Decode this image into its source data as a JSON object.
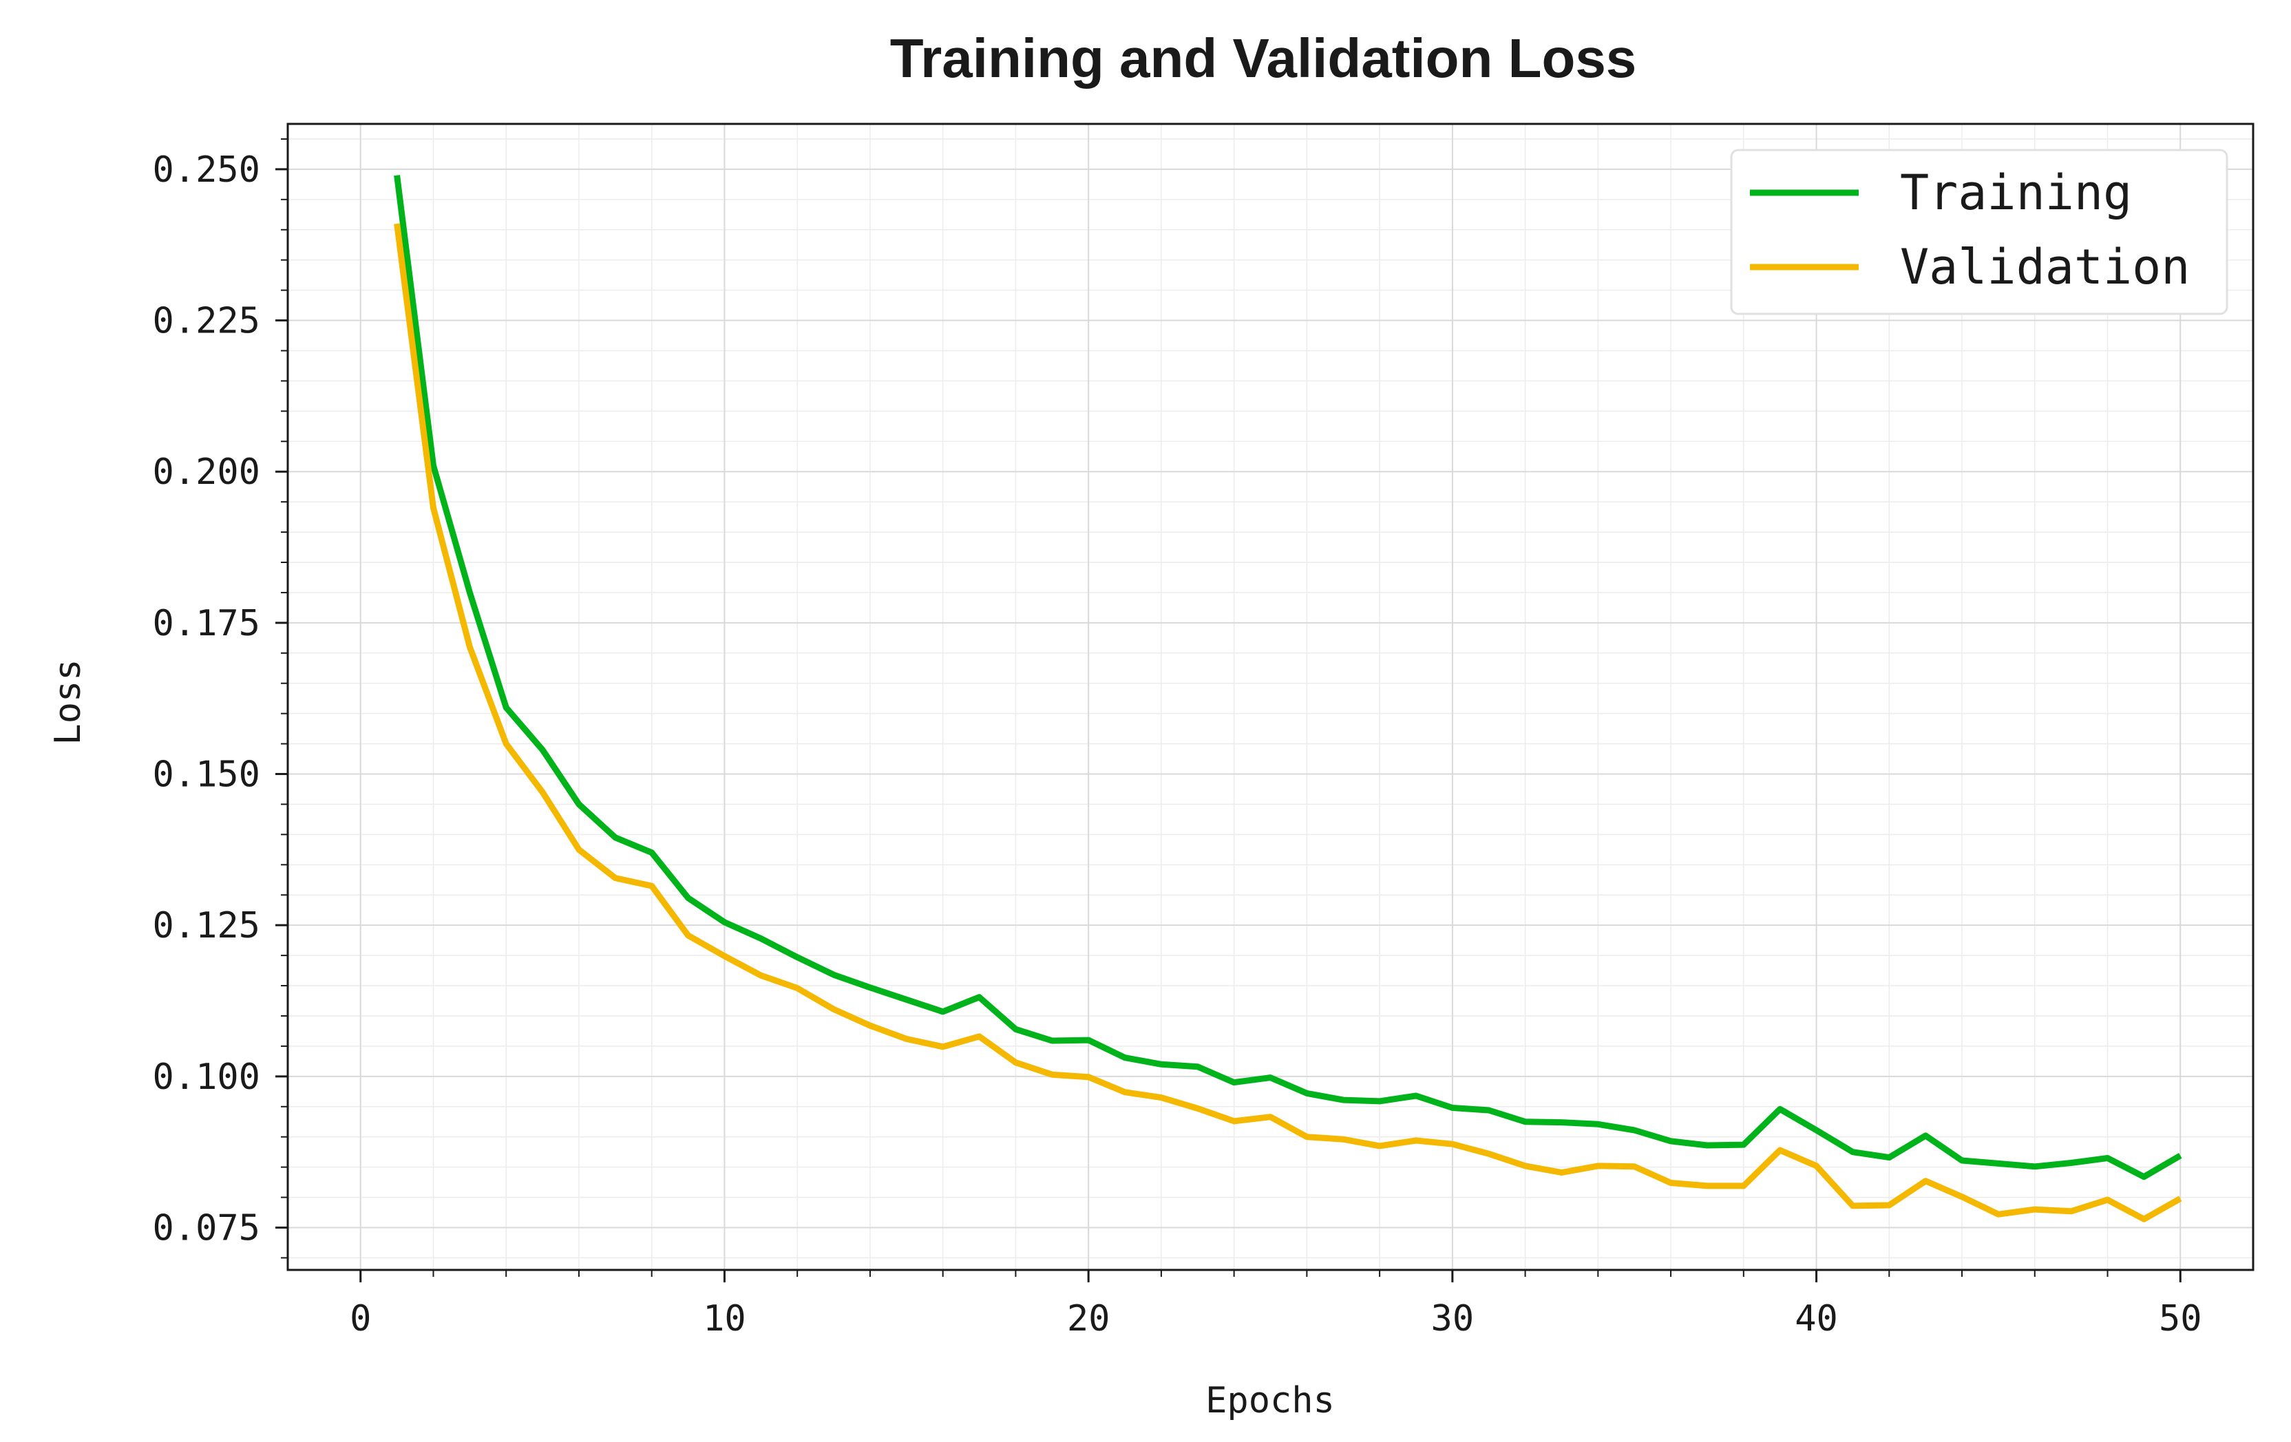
{
  "chart_data": {
    "type": "line",
    "title": "Training and Validation Loss",
    "xlabel": "Epochs",
    "ylabel": "Loss",
    "xlim": [
      -2,
      52
    ],
    "ylim": [
      0.068,
      0.2575
    ],
    "xticks": [
      0,
      10,
      20,
      30,
      40,
      50
    ],
    "xtick_labels": [
      "0",
      "10",
      "20",
      "30",
      "40",
      "50"
    ],
    "yticks": [
      0.075,
      0.1,
      0.125,
      0.15,
      0.175,
      0.2,
      0.225,
      0.25
    ],
    "ytick_labels": [
      "0.075",
      "0.100",
      "0.125",
      "0.150",
      "0.175",
      "0.200",
      "0.225",
      "0.250"
    ],
    "grid": true,
    "legend_position": "top-right",
    "x": [
      1,
      2,
      3,
      4,
      5,
      6,
      7,
      8,
      9,
      10,
      11,
      12,
      13,
      14,
      15,
      16,
      17,
      18,
      19,
      20,
      21,
      22,
      23,
      24,
      25,
      26,
      27,
      28,
      29,
      30,
      31,
      32,
      33,
      34,
      35,
      36,
      37,
      38,
      39,
      40,
      41,
      42,
      43,
      44,
      45,
      46,
      47,
      48,
      49,
      50
    ],
    "series": [
      {
        "name": "Training",
        "color": "#00b31a",
        "values": [
          0.249,
          0.201,
          0.18,
          0.161,
          0.154,
          0.145,
          0.1395,
          0.137,
          0.1295,
          0.1255,
          0.1228,
          0.1197,
          0.1168,
          0.1147,
          0.1127,
          0.1107,
          0.1131,
          0.1078,
          0.1059,
          0.106,
          0.1031,
          0.102,
          0.1016,
          0.099,
          0.0998,
          0.0972,
          0.0961,
          0.0959,
          0.0968,
          0.0948,
          0.0944,
          0.0925,
          0.0924,
          0.0921,
          0.0911,
          0.0893,
          0.0886,
          0.0887,
          0.0946,
          0.0911,
          0.0875,
          0.0866,
          0.0902,
          0.0861,
          0.0856,
          0.0851,
          0.0857,
          0.0865,
          0.0834,
          0.0869
        ]
      },
      {
        "name": "Validation",
        "color": "#f5b800",
        "values": [
          0.241,
          0.194,
          0.171,
          0.155,
          0.147,
          0.1375,
          0.1328,
          0.1315,
          0.1233,
          0.1199,
          0.1167,
          0.1146,
          0.1111,
          0.1084,
          0.1062,
          0.1049,
          0.1066,
          0.1023,
          0.1003,
          0.0999,
          0.0974,
          0.0965,
          0.0947,
          0.0926,
          0.0933,
          0.09,
          0.0896,
          0.0885,
          0.0894,
          0.0888,
          0.0872,
          0.0852,
          0.0841,
          0.0852,
          0.0851,
          0.0824,
          0.0819,
          0.0819,
          0.0878,
          0.0852,
          0.0786,
          0.0787,
          0.0827,
          0.0801,
          0.0772,
          0.078,
          0.0777,
          0.0796,
          0.0764,
          0.0798
        ]
      }
    ]
  }
}
